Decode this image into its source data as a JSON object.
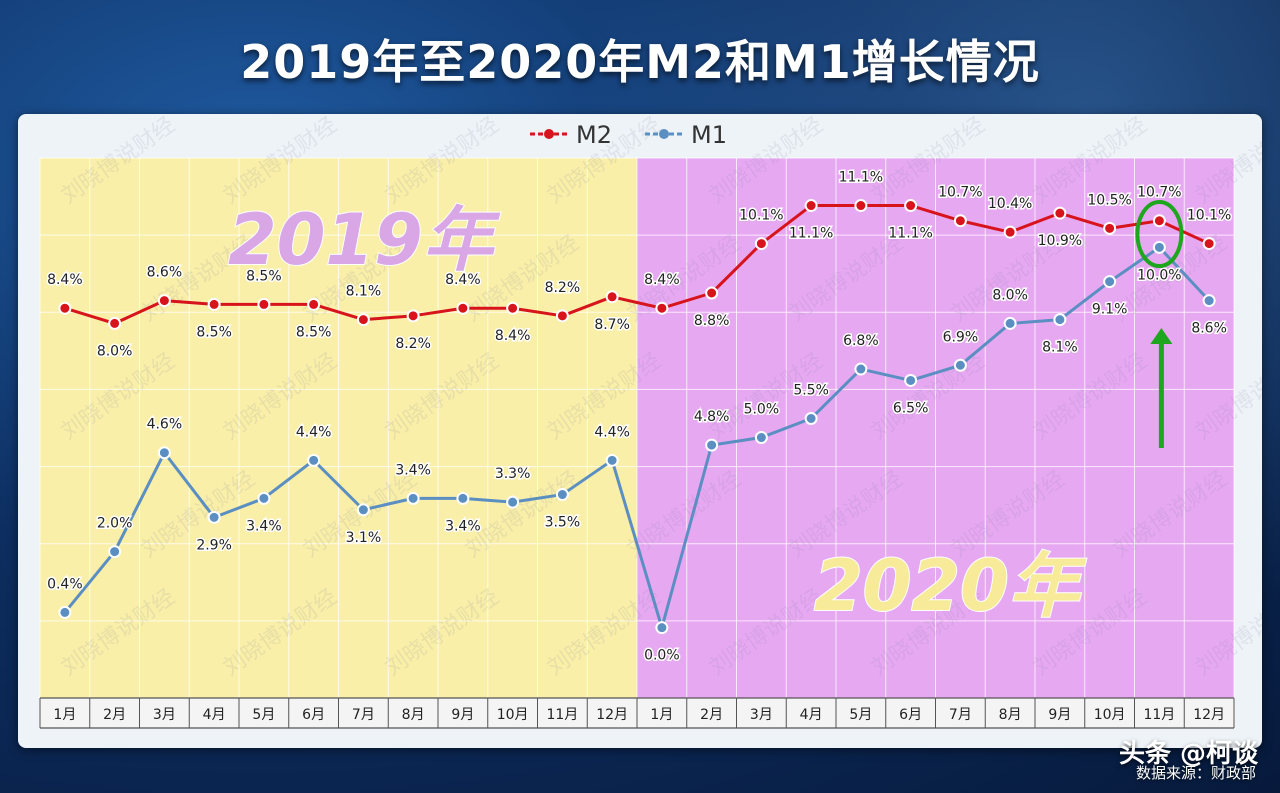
{
  "title": "2019年至2020年M2和M1增长情况",
  "footer": {
    "logo": "头条 @柯谈",
    "source": "数据来源：财政部"
  },
  "watermark": "刘晓博说财经",
  "colors": {
    "m2": "#d7141c",
    "m1": "#5b8fc2",
    "bg2019": "#f9efa8",
    "bg2020": "#e7a8f2",
    "year2019": "#d9a6e6",
    "year2020": "#f7eb9a",
    "highlight": "#1ea61e"
  },
  "chart_data": {
    "type": "line",
    "title": "",
    "categories": [
      "1月",
      "2月",
      "3月",
      "4月",
      "5月",
      "6月",
      "7月",
      "8月",
      "9月",
      "10月",
      "11月",
      "12月",
      "1月",
      "2月",
      "3月",
      "4月",
      "5月",
      "6月",
      "7月",
      "8月",
      "9月",
      "10月",
      "11月",
      "12月"
    ],
    "series": [
      {
        "name": "M2",
        "values": [
          8.4,
          8.0,
          8.6,
          8.5,
          8.5,
          8.5,
          8.1,
          8.2,
          8.4,
          8.4,
          8.2,
          8.7,
          8.4,
          8.8,
          10.1,
          11.1,
          11.1,
          11.1,
          10.7,
          10.4,
          10.9,
          10.5,
          10.7,
          10.1
        ],
        "labels": [
          "8.4%",
          "8.0%",
          "8.6%",
          "8.5%",
          "8.5%",
          "8.5%",
          "8.1%",
          "8.2%",
          "8.4%",
          "8.4%",
          "8.2%",
          "8.7%",
          "8.4%",
          "8.8%",
          "10.1%",
          "11.1%",
          "11.1%",
          "11.1%",
          "10.7%",
          "10.4%",
          "10.9%",
          "10.5%",
          "10.7%",
          "10.1%"
        ]
      },
      {
        "name": "M1",
        "values": [
          0.4,
          2.0,
          4.6,
          2.9,
          3.4,
          4.4,
          3.1,
          3.4,
          3.4,
          3.3,
          3.5,
          4.4,
          0.0,
          4.8,
          5.0,
          5.5,
          6.8,
          6.5,
          6.9,
          8.0,
          8.1,
          9.1,
          10.0,
          8.6
        ],
        "labels": [
          "0.4%",
          "2.0%",
          "4.6%",
          "2.9%",
          "3.4%",
          "4.4%",
          "3.1%",
          "3.4%",
          "3.4%",
          "3.3%",
          "3.5%",
          "4.4%",
          "0.0%",
          "4.8%",
          "5.0%",
          "5.5%",
          "6.8%",
          "6.5%",
          "6.9%",
          "8.0%",
          "8.1%",
          "9.1%",
          "10.0%",
          "8.6%"
        ]
      }
    ],
    "periods": [
      {
        "label": "2019年",
        "from": 0,
        "to": 11
      },
      {
        "label": "2020年",
        "from": 12,
        "to": 23
      }
    ],
    "legend": "top-center",
    "grid": true,
    "highlight": {
      "index": 22,
      "marker": "green ellipse and up-arrow"
    }
  }
}
